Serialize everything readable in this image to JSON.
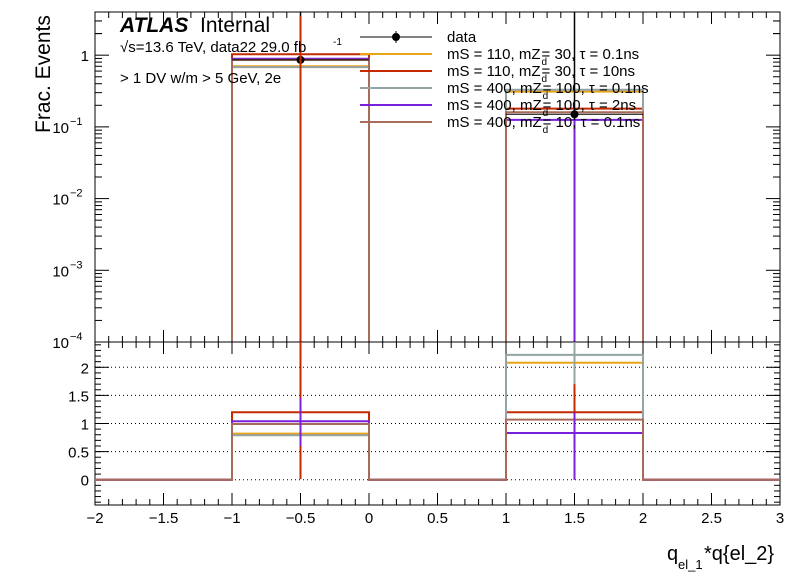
{
  "chart_data": [
    {
      "type": "histogram",
      "panel": "main",
      "ylabel": "Frac. Events",
      "yscale": "log",
      "ylim": [
        0.0001,
        4
      ],
      "xlim": [
        -2,
        3
      ],
      "yticks": [
        {
          "v": 1,
          "base": "1",
          "exp": ""
        },
        {
          "v": 0.1,
          "base": "10",
          "exp": "−1"
        },
        {
          "v": 0.01,
          "base": "10",
          "exp": "−2"
        },
        {
          "v": 0.001,
          "base": "10",
          "exp": "−3"
        },
        {
          "v": 0.0001,
          "base": "10",
          "exp": "−4"
        }
      ],
      "bins": [
        [
          -1,
          0
        ],
        [
          1,
          2
        ]
      ],
      "series": [
        {
          "name": "data",
          "kind": "points",
          "color": "#000000",
          "x": [
            -0.5,
            1.5
          ],
          "values": [
            0.86,
            0.15
          ]
        },
        {
          "name": "mS = 110, mZ_d = 30, τ = 0.1ns",
          "kind": "hist",
          "color": "#e8a317",
          "values": [
            0.7,
            0.31
          ]
        },
        {
          "name": "mS = 110, mZ_d = 30, τ = 10ns",
          "kind": "hist",
          "color": "#c62a00",
          "values": [
            1.03,
            0.18
          ]
        },
        {
          "name": "mS = 400, mZ_d = 100, τ = 0.1ns",
          "kind": "hist",
          "color": "#94a3a3",
          "values": [
            0.68,
            0.33
          ]
        },
        {
          "name": "mS = 400, mZ_d = 100, τ = 2ns",
          "kind": "hist",
          "color": "#7a21dd",
          "values": [
            0.89,
            0.125
          ]
        },
        {
          "name": "mS = 400, mZ_d = 10, τ = 0.1ns",
          "kind": "hist",
          "color": "#a96b59",
          "values": [
            0.86,
            0.16
          ]
        }
      ]
    },
    {
      "type": "histogram",
      "panel": "ratio",
      "xlabel_main": "q",
      "xlabel_sub": "el_1",
      "xlabel_rest": "*q{el_2}",
      "xlim": [
        -2,
        3
      ],
      "ylim": [
        -0.45,
        2.45
      ],
      "xticks": [
        "−2",
        "−1.5",
        "−1",
        "−0.5",
        "0",
        "0.5",
        "1",
        "1.5",
        "2",
        "2.5",
        "3"
      ],
      "yticks": [
        "0",
        "0.5",
        "1",
        "1.5",
        "2"
      ],
      "grid": "horizontal dotted",
      "bins": [
        [
          -1,
          0
        ],
        [
          1,
          2
        ]
      ],
      "series": [
        {
          "name": "mS = 110, mZ_d = 30, τ = 0.1ns",
          "color": "#e8a317",
          "values": [
            0.82,
            2.08
          ]
        },
        {
          "name": "mS = 110, mZ_d = 30, τ = 10ns",
          "color": "#c62a00",
          "values": [
            1.2,
            1.2
          ]
        },
        {
          "name": "mS = 400, mZ_d = 100, τ = 0.1ns",
          "color": "#94a3a3",
          "values": [
            0.79,
            2.22
          ]
        },
        {
          "name": "mS = 400, mZ_d = 100, τ = 2ns",
          "color": "#7a21dd",
          "values": [
            1.04,
            0.83
          ]
        },
        {
          "name": "mS = 400, mZ_d = 10, τ = 0.1ns",
          "color": "#a96b59",
          "values": [
            0.99,
            1.07
          ]
        }
      ]
    }
  ],
  "annotations": {
    "atlas": "ATLAS",
    "internal": "Internal",
    "energy": "√s=13.6 TeV, data22 29.0 fb",
    "energy_exp": "-1",
    "selection": "> 1 DV w/m > 5 GeV, 2e"
  },
  "legend": {
    "placement": "top-right",
    "entries": [
      {
        "key": "data",
        "text": "data",
        "color": "#000000",
        "marker": "point"
      },
      {
        "key": "s1",
        "text": "mS = 110, mZ",
        "sub": "d",
        "rest": " = 30, τ = 0.1ns",
        "color": "#e8a317"
      },
      {
        "key": "s2",
        "text": "mS = 110, mZ",
        "sub": "d",
        "rest": " = 30, τ = 10ns",
        "color": "#c62a00"
      },
      {
        "key": "s3",
        "text": "mS = 400, mZ",
        "sub": "d",
        "rest": " = 100, τ = 0.1ns",
        "color": "#94a3a3"
      },
      {
        "key": "s4",
        "text": "mS = 400, mZ",
        "sub": "d",
        "rest": " = 100, τ = 2ns",
        "color": "#7a21dd"
      },
      {
        "key": "s5",
        "text": "mS = 400, mZ",
        "sub": "d",
        "rest": " = 10, τ = 0.1ns",
        "color": "#a96b59"
      }
    ]
  }
}
